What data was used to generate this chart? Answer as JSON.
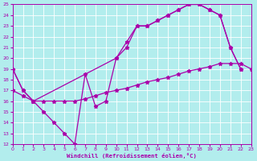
{
  "xlabel": "Windchill (Refroidissement éolien,°C)",
  "bg_color": "#b2eded",
  "grid_color": "#ffffff",
  "line_color": "#aa00aa",
  "xmin": 0,
  "xmax": 23,
  "ymin": 12,
  "ymax": 25,
  "line1_x": [
    0,
    1,
    2,
    3,
    4,
    5,
    6,
    7,
    8,
    9,
    10,
    11,
    12,
    13,
    14,
    15,
    16,
    17,
    18,
    19,
    20,
    21,
    22
  ],
  "line1_y": [
    19,
    17,
    16,
    15,
    14,
    13,
    12,
    18.5,
    15.5,
    16,
    20,
    21,
    23,
    23,
    23.5,
    24,
    24.5,
    25,
    25,
    24.5,
    24,
    21,
    19
  ],
  "line2_x": [
    0,
    1,
    2,
    10,
    11,
    12,
    13,
    14,
    15,
    16,
    17,
    18,
    19,
    20,
    21,
    22
  ],
  "line2_y": [
    19,
    17,
    16,
    20,
    21.5,
    23,
    23,
    23.5,
    24,
    24.5,
    25,
    25,
    24.5,
    24,
    21,
    19
  ],
  "line3_x": [
    0,
    1,
    2,
    3,
    4,
    5,
    6,
    7,
    8,
    9,
    10,
    11,
    12,
    13,
    14,
    15,
    16,
    17,
    18,
    19,
    20,
    21,
    22,
    23
  ],
  "line3_y": [
    17,
    16.5,
    16,
    16,
    16,
    16,
    16,
    16.2,
    16.5,
    16.8,
    17,
    17.2,
    17.5,
    17.8,
    18,
    18.2,
    18.5,
    18.8,
    19,
    19.2,
    19.5,
    19.5,
    19.5,
    19
  ]
}
